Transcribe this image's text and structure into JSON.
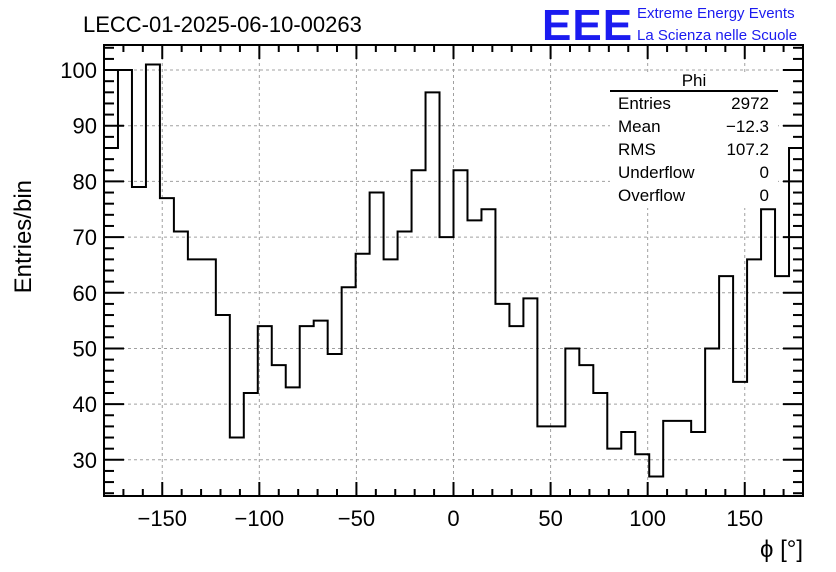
{
  "title": "LECC-01-2025-06-10-00263",
  "logo": {
    "letters": "EEE",
    "line1": "Extreme Energy Events",
    "line2": "La Scienza nelle Scuole",
    "color": "#1b1bf0"
  },
  "stats_box": {
    "name": "Phi",
    "rows": [
      {
        "label": "Entries",
        "value": "2972"
      },
      {
        "label": "Mean",
        "value": "−12.3"
      },
      {
        "label": "RMS",
        "value": "107.2"
      },
      {
        "label": "Underflow",
        "value": "0"
      },
      {
        "label": "Overflow",
        "value": "0"
      }
    ]
  },
  "chart_data": {
    "type": "histogram",
    "title": "LECC-01-2025-06-10-00263",
    "xlabel": "ϕ [°]",
    "ylabel": "Entries/bin",
    "xlim": [
      -180,
      180
    ],
    "ylim": [
      23.5,
      104.5
    ],
    "bin_width": 7.2,
    "grid": true,
    "x_ticks": [
      -150,
      -100,
      -50,
      0,
      50,
      100,
      150
    ],
    "x_tick_labels": [
      "−150",
      "−100",
      "−50",
      "0",
      "50",
      "100",
      "150"
    ],
    "y_ticks": [
      30,
      40,
      50,
      60,
      70,
      80,
      90,
      100
    ],
    "y_tick_labels": [
      "30",
      "40",
      "50",
      "60",
      "70",
      "80",
      "90",
      "100"
    ],
    "series": [
      {
        "name": "Phi",
        "bin_low_edges": [
          -180,
          -172.8,
          -165.6,
          -158.4,
          -151.2,
          -144,
          -136.8,
          -129.6,
          -122.4,
          -115.2,
          -108,
          -100.8,
          -93.6,
          -86.4,
          -79.2,
          -72,
          -64.8,
          -57.6,
          -50.4,
          -43.2,
          -36,
          -28.8,
          -21.6,
          -14.4,
          -7.2,
          0,
          7.2,
          14.4,
          21.6,
          28.8,
          36,
          43.2,
          50.4,
          57.6,
          64.8,
          72,
          79.2,
          86.4,
          93.6,
          100.8,
          108,
          115.2,
          122.4,
          129.6,
          136.8,
          144,
          151.2,
          158.4,
          165.6,
          172.8
        ],
        "values": [
          86,
          100,
          79,
          101,
          77,
          71,
          66,
          66,
          56,
          34,
          42,
          54,
          47,
          43,
          54,
          55,
          49,
          61,
          67,
          78,
          66,
          71,
          82,
          96,
          70,
          82,
          73,
          75,
          58,
          54,
          59,
          36,
          36,
          50,
          47,
          42,
          32,
          35,
          31,
          27,
          37,
          37,
          35,
          50,
          63,
          44,
          66,
          75,
          63,
          86
        ]
      }
    ]
  }
}
